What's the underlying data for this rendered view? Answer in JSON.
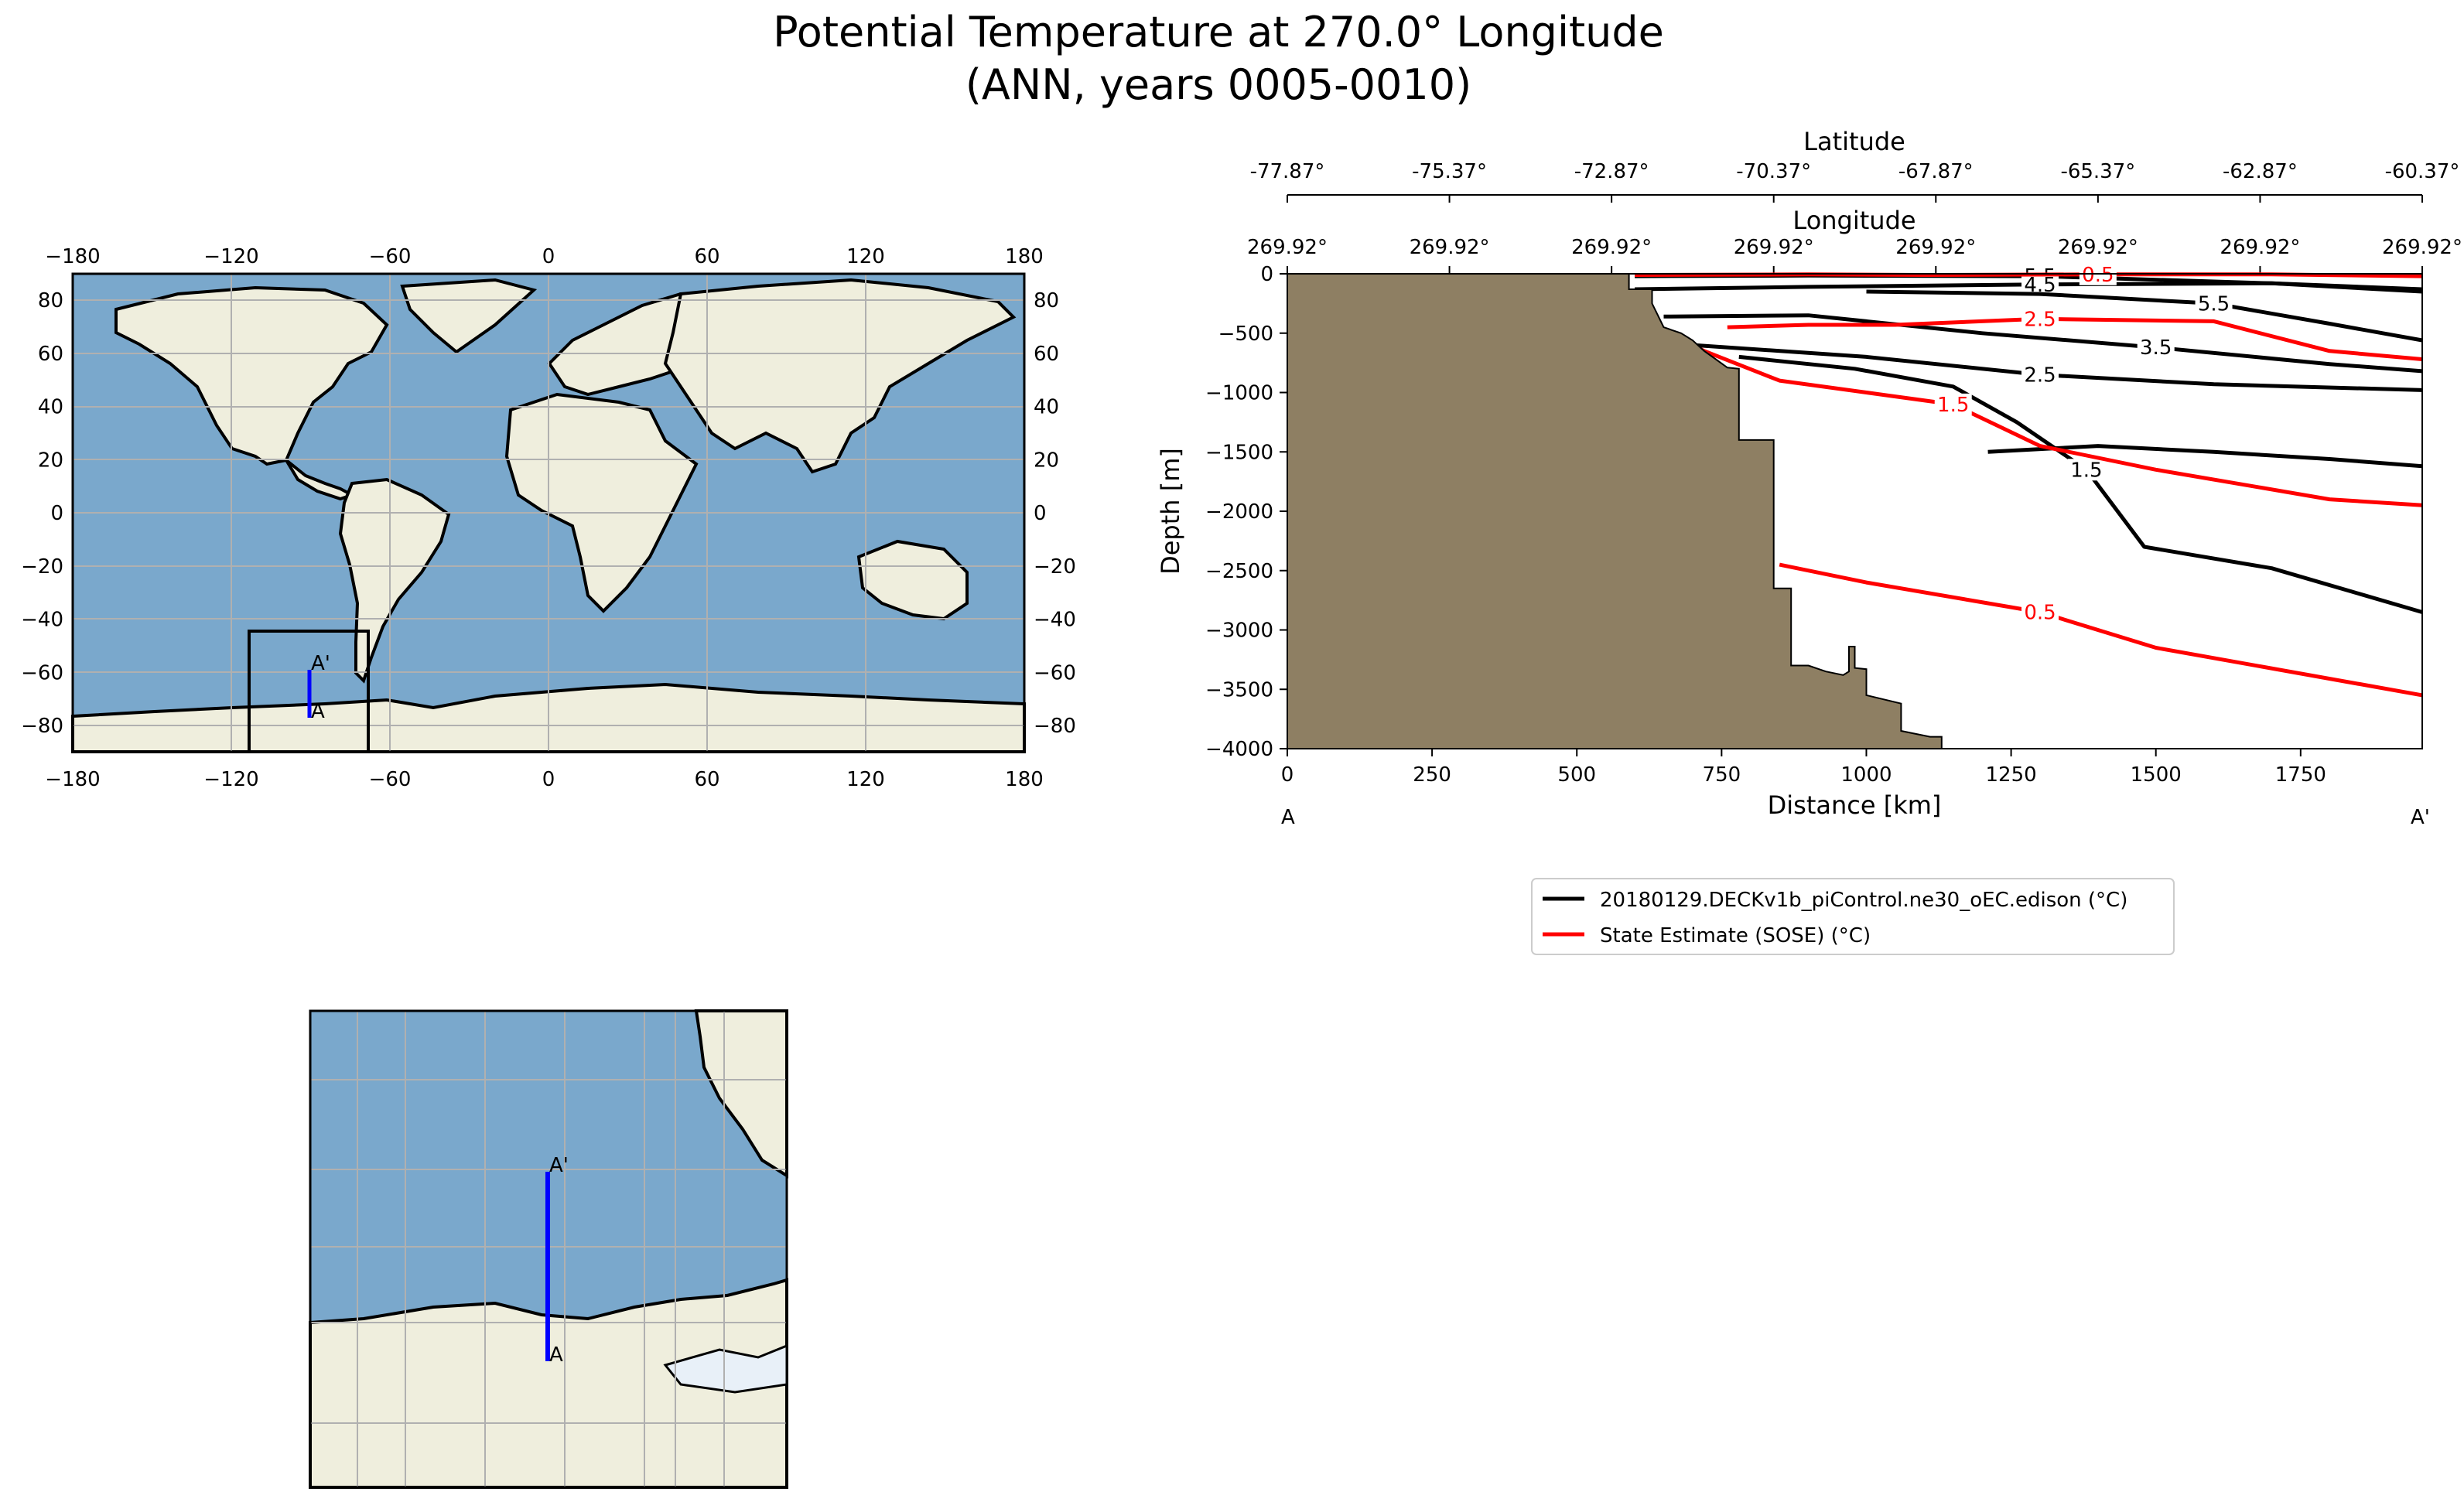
{
  "title": {
    "line1": "Potential Temperature at 270.0° Longitude",
    "line2": "(ANN, years 0005-0010)"
  },
  "colors": {
    "ocean": "#7aa8cc",
    "land": "#efeedd",
    "topography": "#8e7f63",
    "model": "#000000",
    "obs": "#ff0000",
    "transect": "#0000ff",
    "grid": "#b0b0b0"
  },
  "map": {
    "x_ticks": [
      "−180",
      "−120",
      "−60",
      "0",
      "60",
      "120",
      "180"
    ],
    "y_ticks": [
      "80",
      "60",
      "40",
      "20",
      "0",
      "−20",
      "−40",
      "−60",
      "−80"
    ],
    "label_start": "A",
    "label_end": "A'"
  },
  "inset": {
    "label_start": "A",
    "label_end": "A'"
  },
  "section": {
    "lat_axis_title": "Latitude",
    "lat_ticks": [
      "-77.87°",
      "-75.37°",
      "-72.87°",
      "-70.37°",
      "-67.87°",
      "-65.37°",
      "-62.87°",
      "-60.37°"
    ],
    "lon_axis_title": "Longitude",
    "lon_ticks": [
      "269.92°",
      "269.92°",
      "269.92°",
      "269.92°",
      "269.92°",
      "269.92°",
      "269.92°",
      "269.92°"
    ],
    "x_label": "Distance [km]",
    "y_label": "Depth [m]",
    "x_ticks": [
      "0",
      "250",
      "500",
      "750",
      "1000",
      "1250",
      "1500",
      "1750"
    ],
    "y_ticks": [
      "0",
      "−500",
      "−1000",
      "−1500",
      "−2000",
      "−2500",
      "−3000",
      "−3500",
      "−4000"
    ],
    "end_label_left": "A",
    "end_label_right": "A'"
  },
  "legend": {
    "entries": [
      {
        "label": "20180129.DECKv1b_piControl.ne30_oEC.edison (°C)",
        "color": "#000000"
      },
      {
        "label": "State Estimate (SOSE) (°C)",
        "color": "#ff0000"
      }
    ]
  },
  "chart_data": {
    "type": "line",
    "x_unit": "km",
    "y_unit": "m",
    "xlim": [
      0,
      1960
    ],
    "ylim": [
      -4000,
      0
    ],
    "topography": [
      [
        0,
        -4000
      ],
      [
        0,
        0
      ],
      [
        590,
        0
      ],
      [
        590,
        -130
      ],
      [
        630,
        -130
      ],
      [
        630,
        -250
      ],
      [
        640,
        -350
      ],
      [
        650,
        -450
      ],
      [
        680,
        -500
      ],
      [
        700,
        -560
      ],
      [
        720,
        -650
      ],
      [
        740,
        -720
      ],
      [
        760,
        -790
      ],
      [
        780,
        -800
      ],
      [
        780,
        -1400
      ],
      [
        840,
        -1400
      ],
      [
        840,
        -2650
      ],
      [
        870,
        -2650
      ],
      [
        870,
        -3300
      ],
      [
        900,
        -3300
      ],
      [
        930,
        -3350
      ],
      [
        960,
        -3380
      ],
      [
        970,
        -3350
      ],
      [
        970,
        -3140
      ],
      [
        980,
        -3140
      ],
      [
        980,
        -3320
      ],
      [
        1000,
        -3330
      ],
      [
        1000,
        -3550
      ],
      [
        1060,
        -3620
      ],
      [
        1060,
        -3850
      ],
      [
        1110,
        -3900
      ],
      [
        1130,
        -3900
      ],
      [
        1130,
        -4000
      ]
    ],
    "series": [
      {
        "name": "20180129.DECKv1b_piControl.ne30_oEC.edison (°C)",
        "contours": [
          {
            "label": "5.5",
            "points": [
              [
                600,
                -20
              ],
              [
                900,
                -15
              ],
              [
                1300,
                -20
              ],
              [
                1700,
                -80
              ],
              [
                1960,
                -150
              ]
            ]
          },
          {
            "label": "4.5",
            "points": [
              [
                600,
                -130
              ],
              [
                900,
                -110
              ],
              [
                1300,
                -90
              ],
              [
                1700,
                -80
              ],
              [
                1960,
                -130
              ]
            ]
          },
          {
            "label": "5.5",
            "points": [
              [
                1000,
                -150
              ],
              [
                1300,
                -170
              ],
              [
                1600,
                -250
              ],
              [
                1800,
                -420
              ],
              [
                1960,
                -560
              ]
            ]
          },
          {
            "label": "3.5",
            "points": [
              [
                650,
                -360
              ],
              [
                900,
                -350
              ],
              [
                1200,
                -500
              ],
              [
                1500,
                -620
              ],
              [
                1800,
                -760
              ],
              [
                1960,
                -820
              ]
            ]
          },
          {
            "label": "2.5",
            "points": [
              [
                700,
                -600
              ],
              [
                1000,
                -700
              ],
              [
                1300,
                -850
              ],
              [
                1600,
                -930
              ],
              [
                1960,
                -980
              ]
            ]
          },
          {
            "label": "1.5",
            "points": [
              [
                780,
                -700
              ],
              [
                980,
                -800
              ],
              [
                1150,
                -950
              ],
              [
                1260,
                -1250
              ],
              [
                1380,
                -1650
              ],
              [
                1480,
                -2300
              ],
              [
                1700,
                -2480
              ],
              [
                1960,
                -2850
              ]
            ]
          },
          {
            "label": "",
            "points": [
              [
                1210,
                -1500
              ],
              [
                1400,
                -1450
              ],
              [
                1600,
                -1500
              ],
              [
                1800,
                -1560
              ],
              [
                1960,
                -1620
              ]
            ]
          }
        ]
      },
      {
        "name": "State Estimate (SOSE) (°C)",
        "contours": [
          {
            "label": "0.5",
            "points": [
              [
                600,
                -10
              ],
              [
                900,
                -5
              ],
              [
                1100,
                -10
              ],
              [
                1400,
                -5
              ],
              [
                1700,
                -5
              ],
              [
                1960,
                -20
              ]
            ]
          },
          {
            "label": "2.5",
            "points": [
              [
                760,
                -450
              ],
              [
                900,
                -430
              ],
              [
                1050,
                -430
              ],
              [
                1300,
                -380
              ],
              [
                1600,
                -400
              ],
              [
                1800,
                -650
              ],
              [
                1960,
                -720
              ]
            ]
          },
          {
            "label": "1.5",
            "points": [
              [
                630,
                -420
              ],
              [
                720,
                -650
              ],
              [
                850,
                -900
              ],
              [
                1000,
                -1000
              ],
              [
                1150,
                -1100
              ],
              [
                1300,
                -1450
              ],
              [
                1500,
                -1650
              ],
              [
                1800,
                -1900
              ],
              [
                1960,
                -1950
              ]
            ]
          },
          {
            "label": "0.5",
            "points": [
              [
                850,
                -2450
              ],
              [
                1000,
                -2600
              ],
              [
                1300,
                -2850
              ],
              [
                1500,
                -3150
              ],
              [
                1960,
                -3550
              ]
            ]
          }
        ]
      }
    ],
    "transect": {
      "longitude": 270.0,
      "lat_start": -77.87,
      "lat_end": -60.37
    }
  }
}
